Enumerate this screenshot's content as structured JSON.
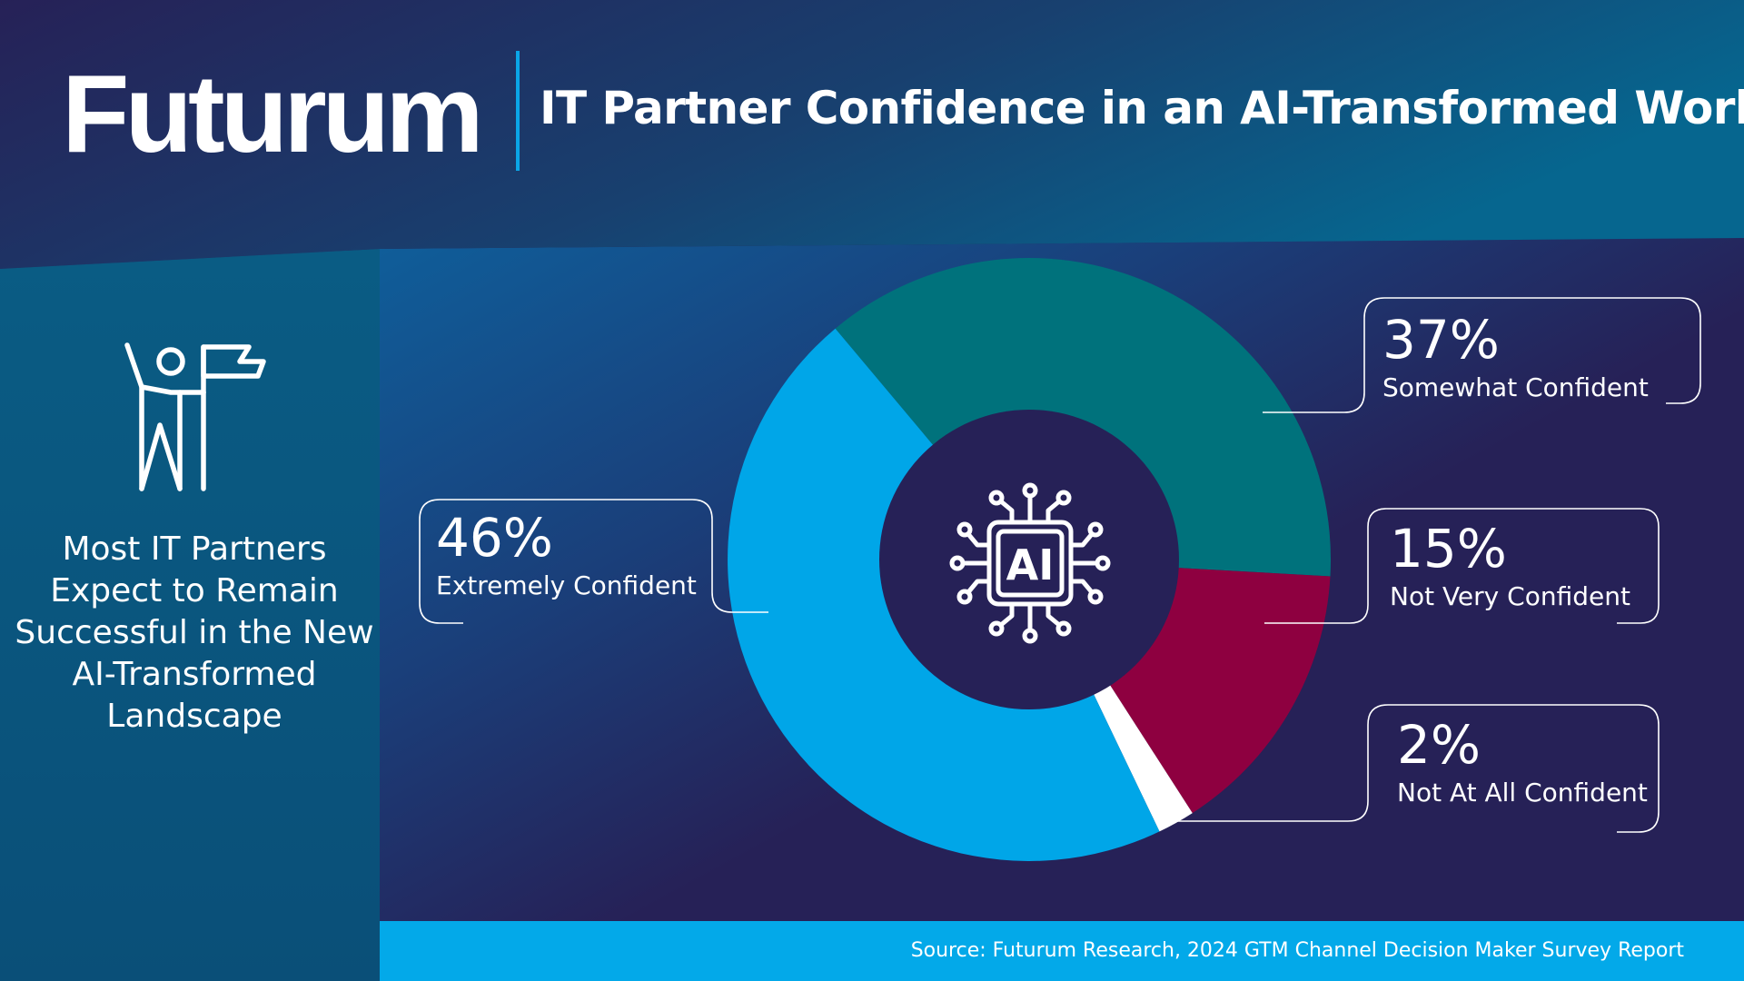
{
  "header": {
    "brand": "Futurum",
    "title": "IT Partner Confidence in an AI-Transformed World"
  },
  "sidebar": {
    "icon": "person-with-flag-icon",
    "headline": "Most IT Partners Expect to Remain Successful in the New AI-Transformed Landscape"
  },
  "chart_data": {
    "type": "pie",
    "donut": true,
    "center_icon": "ai-chip-icon",
    "center_text": "AI",
    "labels": [
      "Somewhat Confident",
      "Not Very Confident",
      "Not At All Confident",
      "Extremely Confident"
    ],
    "values": [
      37,
      15,
      2,
      46
    ],
    "value_labels": [
      "37%",
      "15%",
      "2%",
      "46%"
    ],
    "colors": [
      "#00727c",
      "#8e0040",
      "#ffffff",
      "#00a6e8"
    ]
  },
  "source": "Source: Futurum Research, 2024 GTM Channel Decision Maker Survey Report",
  "colors": {
    "background": "#262157",
    "header_top": "#262157",
    "header_accent": "#0e5a86",
    "sidebar": "#0a5279",
    "accent": "#03a9e9",
    "divider": "#0aa6e8"
  }
}
